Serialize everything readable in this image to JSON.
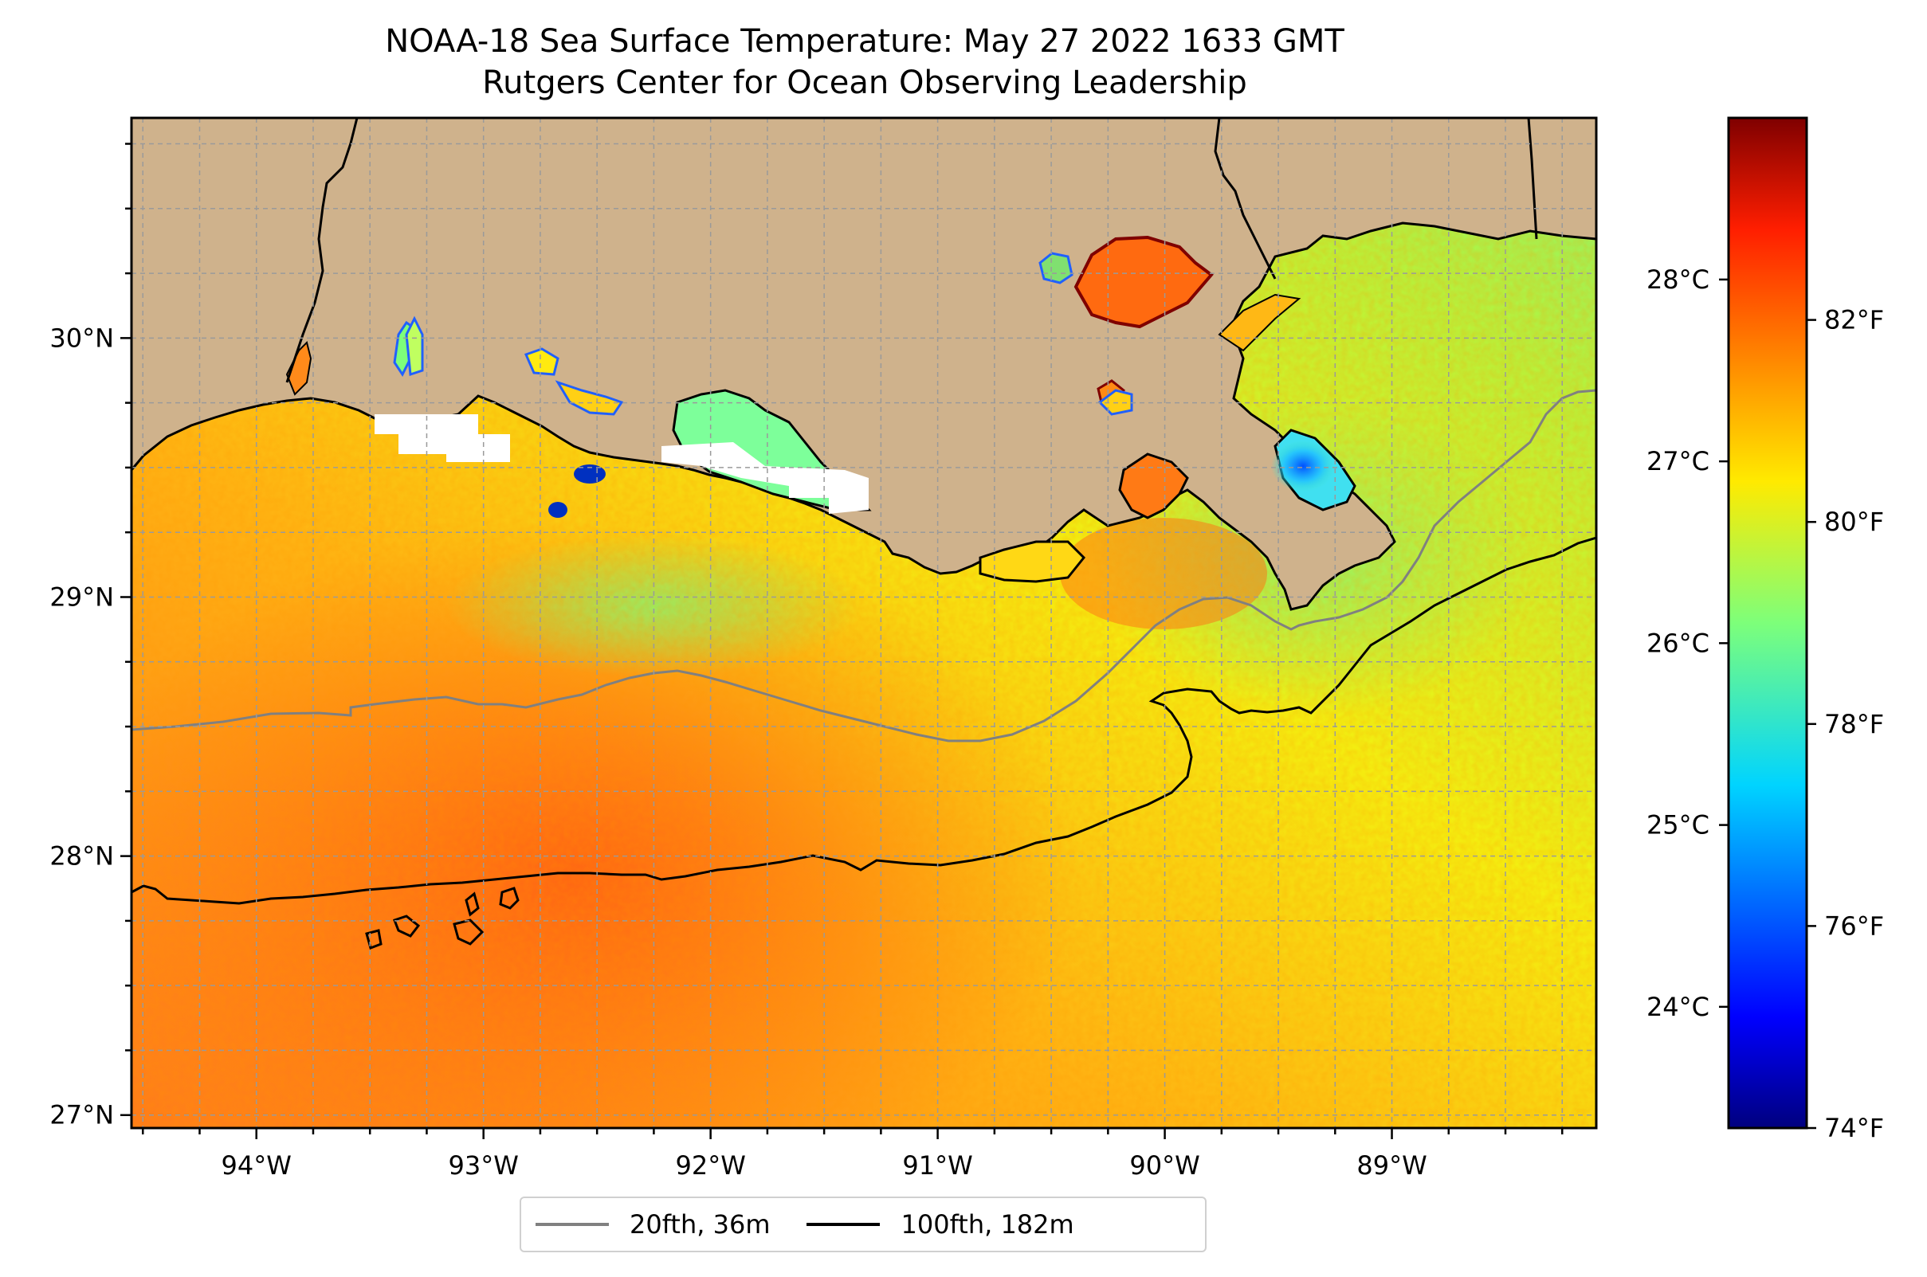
{
  "title": {
    "line1": "NOAA-18 Sea Surface Temperature: May 27 2022 1633 GMT",
    "line2": "Rutgers Center for Ocean Observing Leadership"
  },
  "map": {
    "lon_range": [
      -94.55,
      -88.1
    ],
    "lat_range": [
      26.95,
      30.85
    ],
    "lon_ticks": [
      {
        "value": -94,
        "label": "94°W"
      },
      {
        "value": -93,
        "label": "93°W"
      },
      {
        "value": -92,
        "label": "92°W"
      },
      {
        "value": -91,
        "label": "91°W"
      },
      {
        "value": -90,
        "label": "90°W"
      },
      {
        "value": -89,
        "label": "89°W"
      }
    ],
    "lat_ticks": [
      {
        "value": 27,
        "label": "27°N"
      },
      {
        "value": 28,
        "label": "28°N"
      },
      {
        "value": 29,
        "label": "29°N"
      },
      {
        "value": 30,
        "label": "30°N"
      }
    ],
    "gridlines": "dashed",
    "land_color": "#cfb28c"
  },
  "colorbar": {
    "colormap": "jet",
    "celsius_ticks": [
      {
        "value": 24,
        "label": "24°C"
      },
      {
        "value": 25,
        "label": "25°C"
      },
      {
        "value": 26,
        "label": "26°C"
      },
      {
        "value": 27,
        "label": "27°C"
      },
      {
        "value": 28,
        "label": "28°C"
      }
    ],
    "fahrenheit_ticks": [
      {
        "value": 74,
        "label": "74°F"
      },
      {
        "value": 76,
        "label": "76°F"
      },
      {
        "value": 78,
        "label": "78°F"
      },
      {
        "value": 80,
        "label": "80°F"
      },
      {
        "value": 82,
        "label": "82°F"
      }
    ],
    "range_f": [
      74,
      84
    ]
  },
  "legend": {
    "items": [
      {
        "label": "20fth, 36m",
        "color": "#808080"
      },
      {
        "label": "100fth, 182m",
        "color": "#000000"
      }
    ]
  }
}
